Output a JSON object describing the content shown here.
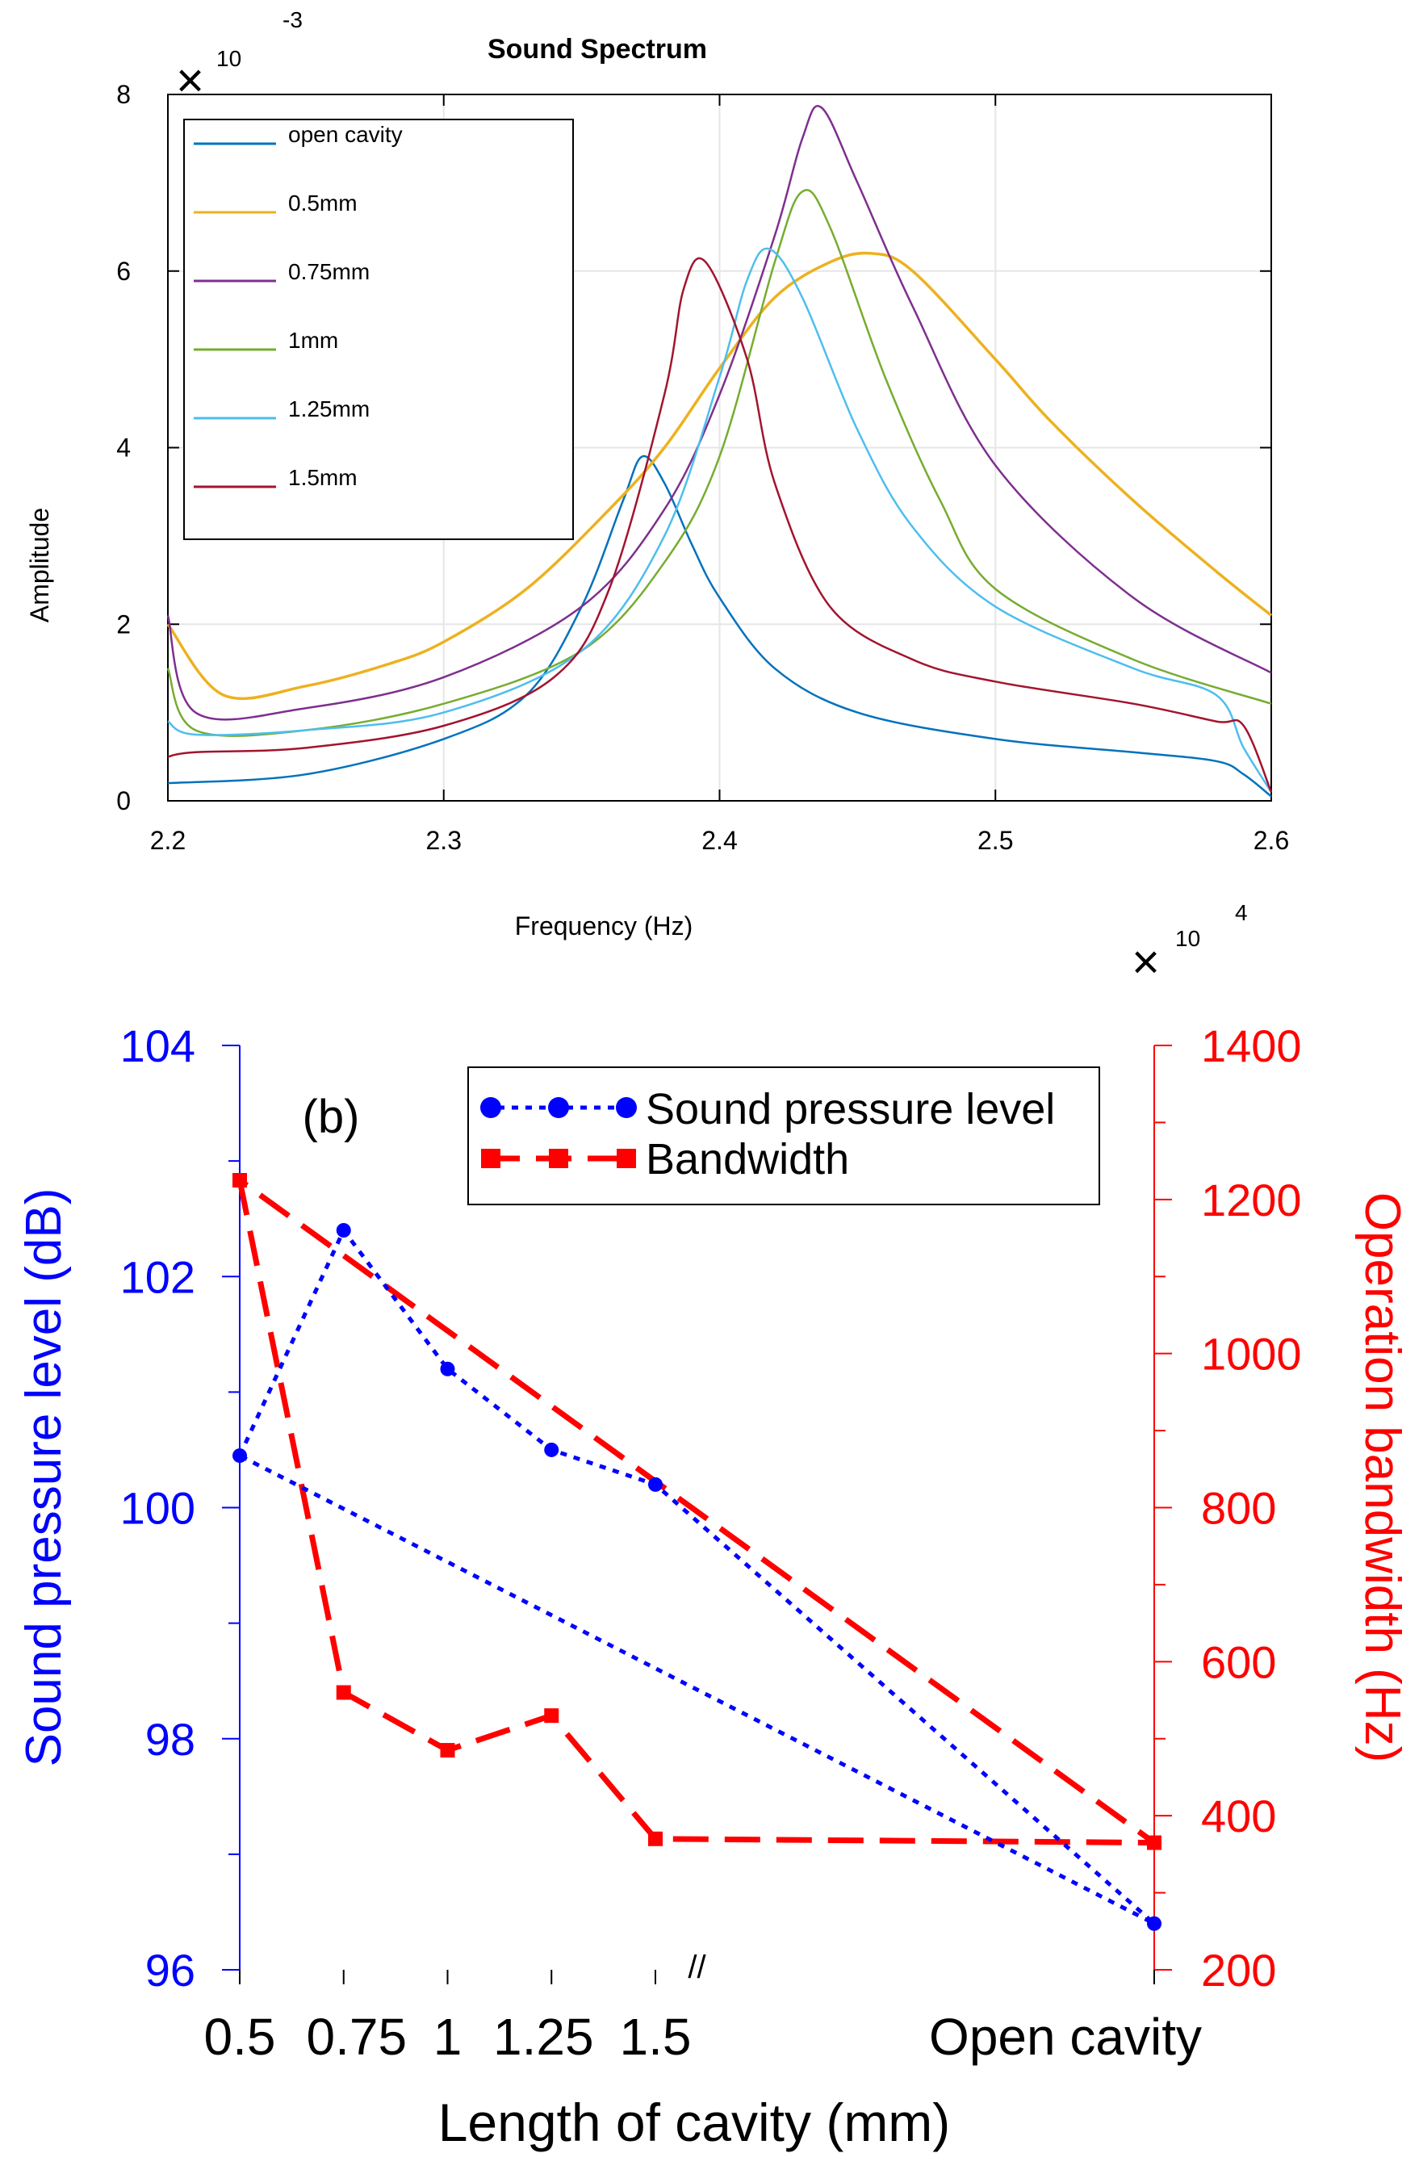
{
  "colors": {
    "open_cavity": "#0072BD",
    "mm_0_5": "#EDB120",
    "mm_0_75": "#7E2F8E",
    "mm_1": "#77AC30",
    "mm_1_25": "#4DBEEE",
    "mm_1_5": "#A2142F",
    "spl": "#0000FF",
    "bandwidth": "#FF0000"
  },
  "chart_data": [
    {
      "type": "line",
      "title": "Sound Spectrum",
      "xlabel": "Frequency (Hz)",
      "ylabel": "Amplitude",
      "x_multiplier_label": {
        "mark": "×",
        "base": "10",
        "exponent": "4"
      },
      "y_multiplier_label": {
        "mark": "×",
        "base": "10",
        "exponent": "-3"
      },
      "xlim": [
        2.2,
        2.6
      ],
      "ylim": [
        0,
        8
      ],
      "xticks": [
        2.2,
        2.3,
        2.4,
        2.5,
        2.6
      ],
      "xtick_labels": [
        "2.2",
        "2.3",
        "2.4",
        "2.5",
        "2.6"
      ],
      "yticks": [
        0,
        2,
        4,
        6,
        8
      ],
      "ytick_labels": [
        "0",
        "2",
        "4",
        "6",
        "8"
      ],
      "grid": true,
      "legend_position": "top-left",
      "series": [
        {
          "name": "open cavity",
          "color_key": "open_cavity",
          "x": [
            2.2,
            2.25,
            2.3,
            2.33,
            2.35,
            2.365,
            2.372,
            2.38,
            2.39,
            2.4,
            2.42,
            2.45,
            2.5,
            2.55,
            2.58,
            2.59,
            2.6
          ],
          "y": [
            0.2,
            0.3,
            0.7,
            1.2,
            2.2,
            3.4,
            3.9,
            3.6,
            2.9,
            2.3,
            1.5,
            1.0,
            0.7,
            0.55,
            0.45,
            0.3,
            0.05
          ]
        },
        {
          "name": "0.5mm",
          "color_key": "mm_0_5",
          "x": [
            2.2,
            2.22,
            2.25,
            2.28,
            2.3,
            2.33,
            2.36,
            2.38,
            2.4,
            2.42,
            2.44,
            2.455,
            2.47,
            2.5,
            2.52,
            2.55,
            2.58,
            2.6
          ],
          "y": [
            2.0,
            1.2,
            1.3,
            1.55,
            1.8,
            2.4,
            3.3,
            4.0,
            4.9,
            5.7,
            6.1,
            6.2,
            6.0,
            5.0,
            4.3,
            3.4,
            2.6,
            2.1
          ]
        },
        {
          "name": "0.75mm",
          "color_key": "mm_0_75",
          "x": [
            2.2,
            2.21,
            2.25,
            2.3,
            2.35,
            2.38,
            2.4,
            2.42,
            2.43,
            2.437,
            2.45,
            2.47,
            2.5,
            2.55,
            2.6
          ],
          "y": [
            2.1,
            1.0,
            1.05,
            1.4,
            2.2,
            3.3,
            4.6,
            6.4,
            7.5,
            7.85,
            7.0,
            5.6,
            3.8,
            2.3,
            1.45
          ]
        },
        {
          "name": "1mm",
          "color_key": "mm_1",
          "x": [
            2.2,
            2.21,
            2.25,
            2.3,
            2.35,
            2.38,
            2.4,
            2.42,
            2.43,
            2.44,
            2.46,
            2.48,
            2.5,
            2.55,
            2.6
          ],
          "y": [
            1.5,
            0.8,
            0.8,
            1.1,
            1.7,
            2.7,
            3.9,
            6.1,
            6.9,
            6.5,
            4.8,
            3.4,
            2.4,
            1.6,
            1.1
          ]
        },
        {
          "name": "1.25mm",
          "color_key": "mm_1_25",
          "x": [
            2.2,
            2.21,
            2.25,
            2.3,
            2.35,
            2.38,
            2.4,
            2.41,
            2.418,
            2.43,
            2.45,
            2.47,
            2.5,
            2.55,
            2.58,
            2.59,
            2.6
          ],
          "y": [
            0.9,
            0.75,
            0.8,
            1.0,
            1.7,
            3.0,
            4.8,
            5.9,
            6.25,
            5.7,
            4.2,
            3.1,
            2.2,
            1.5,
            1.2,
            0.6,
            0.1
          ]
        },
        {
          "name": "1.5mm",
          "color_key": "mm_1_5",
          "x": [
            2.2,
            2.21,
            2.25,
            2.3,
            2.34,
            2.36,
            2.38,
            2.387,
            2.395,
            2.41,
            2.42,
            2.44,
            2.47,
            2.5,
            2.55,
            2.58,
            2.59,
            2.6
          ],
          "y": [
            0.5,
            0.55,
            0.6,
            0.85,
            1.4,
            2.4,
            4.6,
            5.8,
            6.1,
            5.0,
            3.6,
            2.2,
            1.6,
            1.35,
            1.1,
            0.9,
            0.85,
            0.1
          ]
        }
      ]
    },
    {
      "type": "line",
      "panel_label": "(b)",
      "xlabel": "Length of cavity (mm)",
      "ylabel": "Sound pressure level (dB)",
      "y2label": "Operation bandwidth (Hz)",
      "categories": [
        "0.5",
        "0.75",
        "1",
        "1.25",
        "1.5",
        "Open cavity"
      ],
      "category_positions": [
        0.5,
        0.75,
        1.0,
        1.25,
        1.5,
        2.7
      ],
      "axis_break_label": "//",
      "axis_break_at": 1.6,
      "xlim": [
        0.5,
        2.7
      ],
      "ylim": [
        96,
        104
      ],
      "yticks": [
        96,
        98,
        100,
        102,
        104
      ],
      "ytick_labels": [
        "96",
        "98",
        "100",
        "102",
        "104"
      ],
      "y2lim": [
        200,
        1400
      ],
      "y2ticks": [
        200,
        400,
        600,
        800,
        1000,
        1200,
        1400
      ],
      "y2tick_labels": [
        "200",
        "400",
        "600",
        "800",
        "1000",
        "1200",
        "1400"
      ],
      "legend_position": "top-center",
      "series": [
        {
          "name": "Sound pressure level",
          "axis": "left",
          "color_key": "spl",
          "x": [
            0.5,
            0.75,
            1.0,
            1.25,
            1.5,
            2.7,
            0.5
          ],
          "values": [
            100.45,
            102.4,
            101.2,
            100.5,
            100.2,
            96.4,
            100.45
          ]
        },
        {
          "name": "Bandwidth",
          "axis": "right",
          "color_key": "bandwidth",
          "x": [
            0.5,
            0.75,
            1.0,
            1.25,
            1.5,
            2.7,
            0.5
          ],
          "values": [
            1225,
            560,
            485,
            530,
            370,
            365,
            1225
          ]
        }
      ]
    }
  ]
}
